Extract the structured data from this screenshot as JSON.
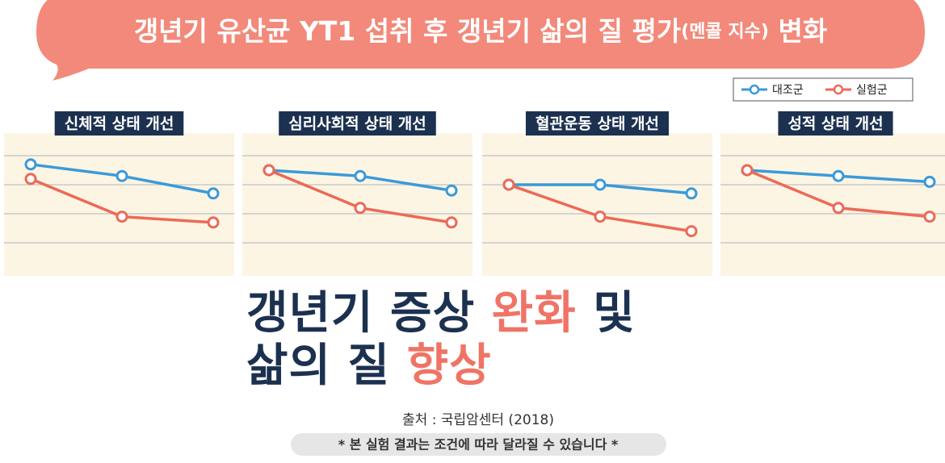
{
  "header": {
    "title": [
      "갱년기 유산균 YT1 섭취 후 갱년기 삶의 질 평가",
      "(멘콜 지수)",
      "변화"
    ]
  },
  "chart_data": [
    {
      "type": "line",
      "title": "신체적 상태 개선",
      "categories": [
        null,
        null,
        null
      ],
      "ylim": [
        0,
        5
      ],
      "yticks": [
        1,
        2,
        3,
        4
      ],
      "grid": true,
      "series": [
        {
          "name": "대조군",
          "color": "#3b9ad8",
          "values": [
            3.7,
            3.3,
            2.7
          ]
        },
        {
          "name": "실험군",
          "color": "#ec6a56",
          "values": [
            3.2,
            1.9,
            1.7
          ]
        }
      ]
    },
    {
      "type": "line",
      "title": "심리사회적 상태 개선",
      "categories": [
        null,
        null,
        null
      ],
      "ylim": [
        0,
        5
      ],
      "yticks": [
        1,
        2,
        3,
        4
      ],
      "grid": true,
      "series": [
        {
          "name": "대조군",
          "color": "#3b9ad8",
          "values": [
            3.5,
            3.3,
            2.8
          ]
        },
        {
          "name": "실험군",
          "color": "#ec6a56",
          "values": [
            3.5,
            2.2,
            1.7
          ]
        }
      ]
    },
    {
      "type": "line",
      "title": "혈관운동 상태 개선",
      "categories": [
        null,
        null,
        null
      ],
      "ylim": [
        0,
        5
      ],
      "yticks": [
        1,
        2,
        3,
        4
      ],
      "grid": true,
      "series": [
        {
          "name": "대조군",
          "color": "#3b9ad8",
          "values": [
            3.0,
            3.0,
            2.7
          ]
        },
        {
          "name": "실험군",
          "color": "#ec6a56",
          "values": [
            3.0,
            1.9,
            1.4
          ]
        }
      ]
    },
    {
      "type": "line",
      "title": "성적 상태 개선",
      "categories": [
        null,
        null,
        null
      ],
      "ylim": [
        0,
        5
      ],
      "yticks": [
        1,
        2,
        3,
        4
      ],
      "grid": true,
      "series": [
        {
          "name": "대조군",
          "color": "#3b9ad8",
          "values": [
            3.5,
            3.3,
            3.1
          ]
        },
        {
          "name": "실험군",
          "color": "#ec6a56",
          "values": [
            3.5,
            2.2,
            1.9
          ]
        }
      ]
    }
  ],
  "headline": {
    "line1": [
      "갱년기 증상",
      "완화",
      "및"
    ],
    "line2": [
      "삶의 질",
      "향상"
    ]
  },
  "source": "출처 : 국립암센터 (2018)",
  "note": "* 본 실험 결과는 조건에 따라 달라질 수 있습니다 *"
}
